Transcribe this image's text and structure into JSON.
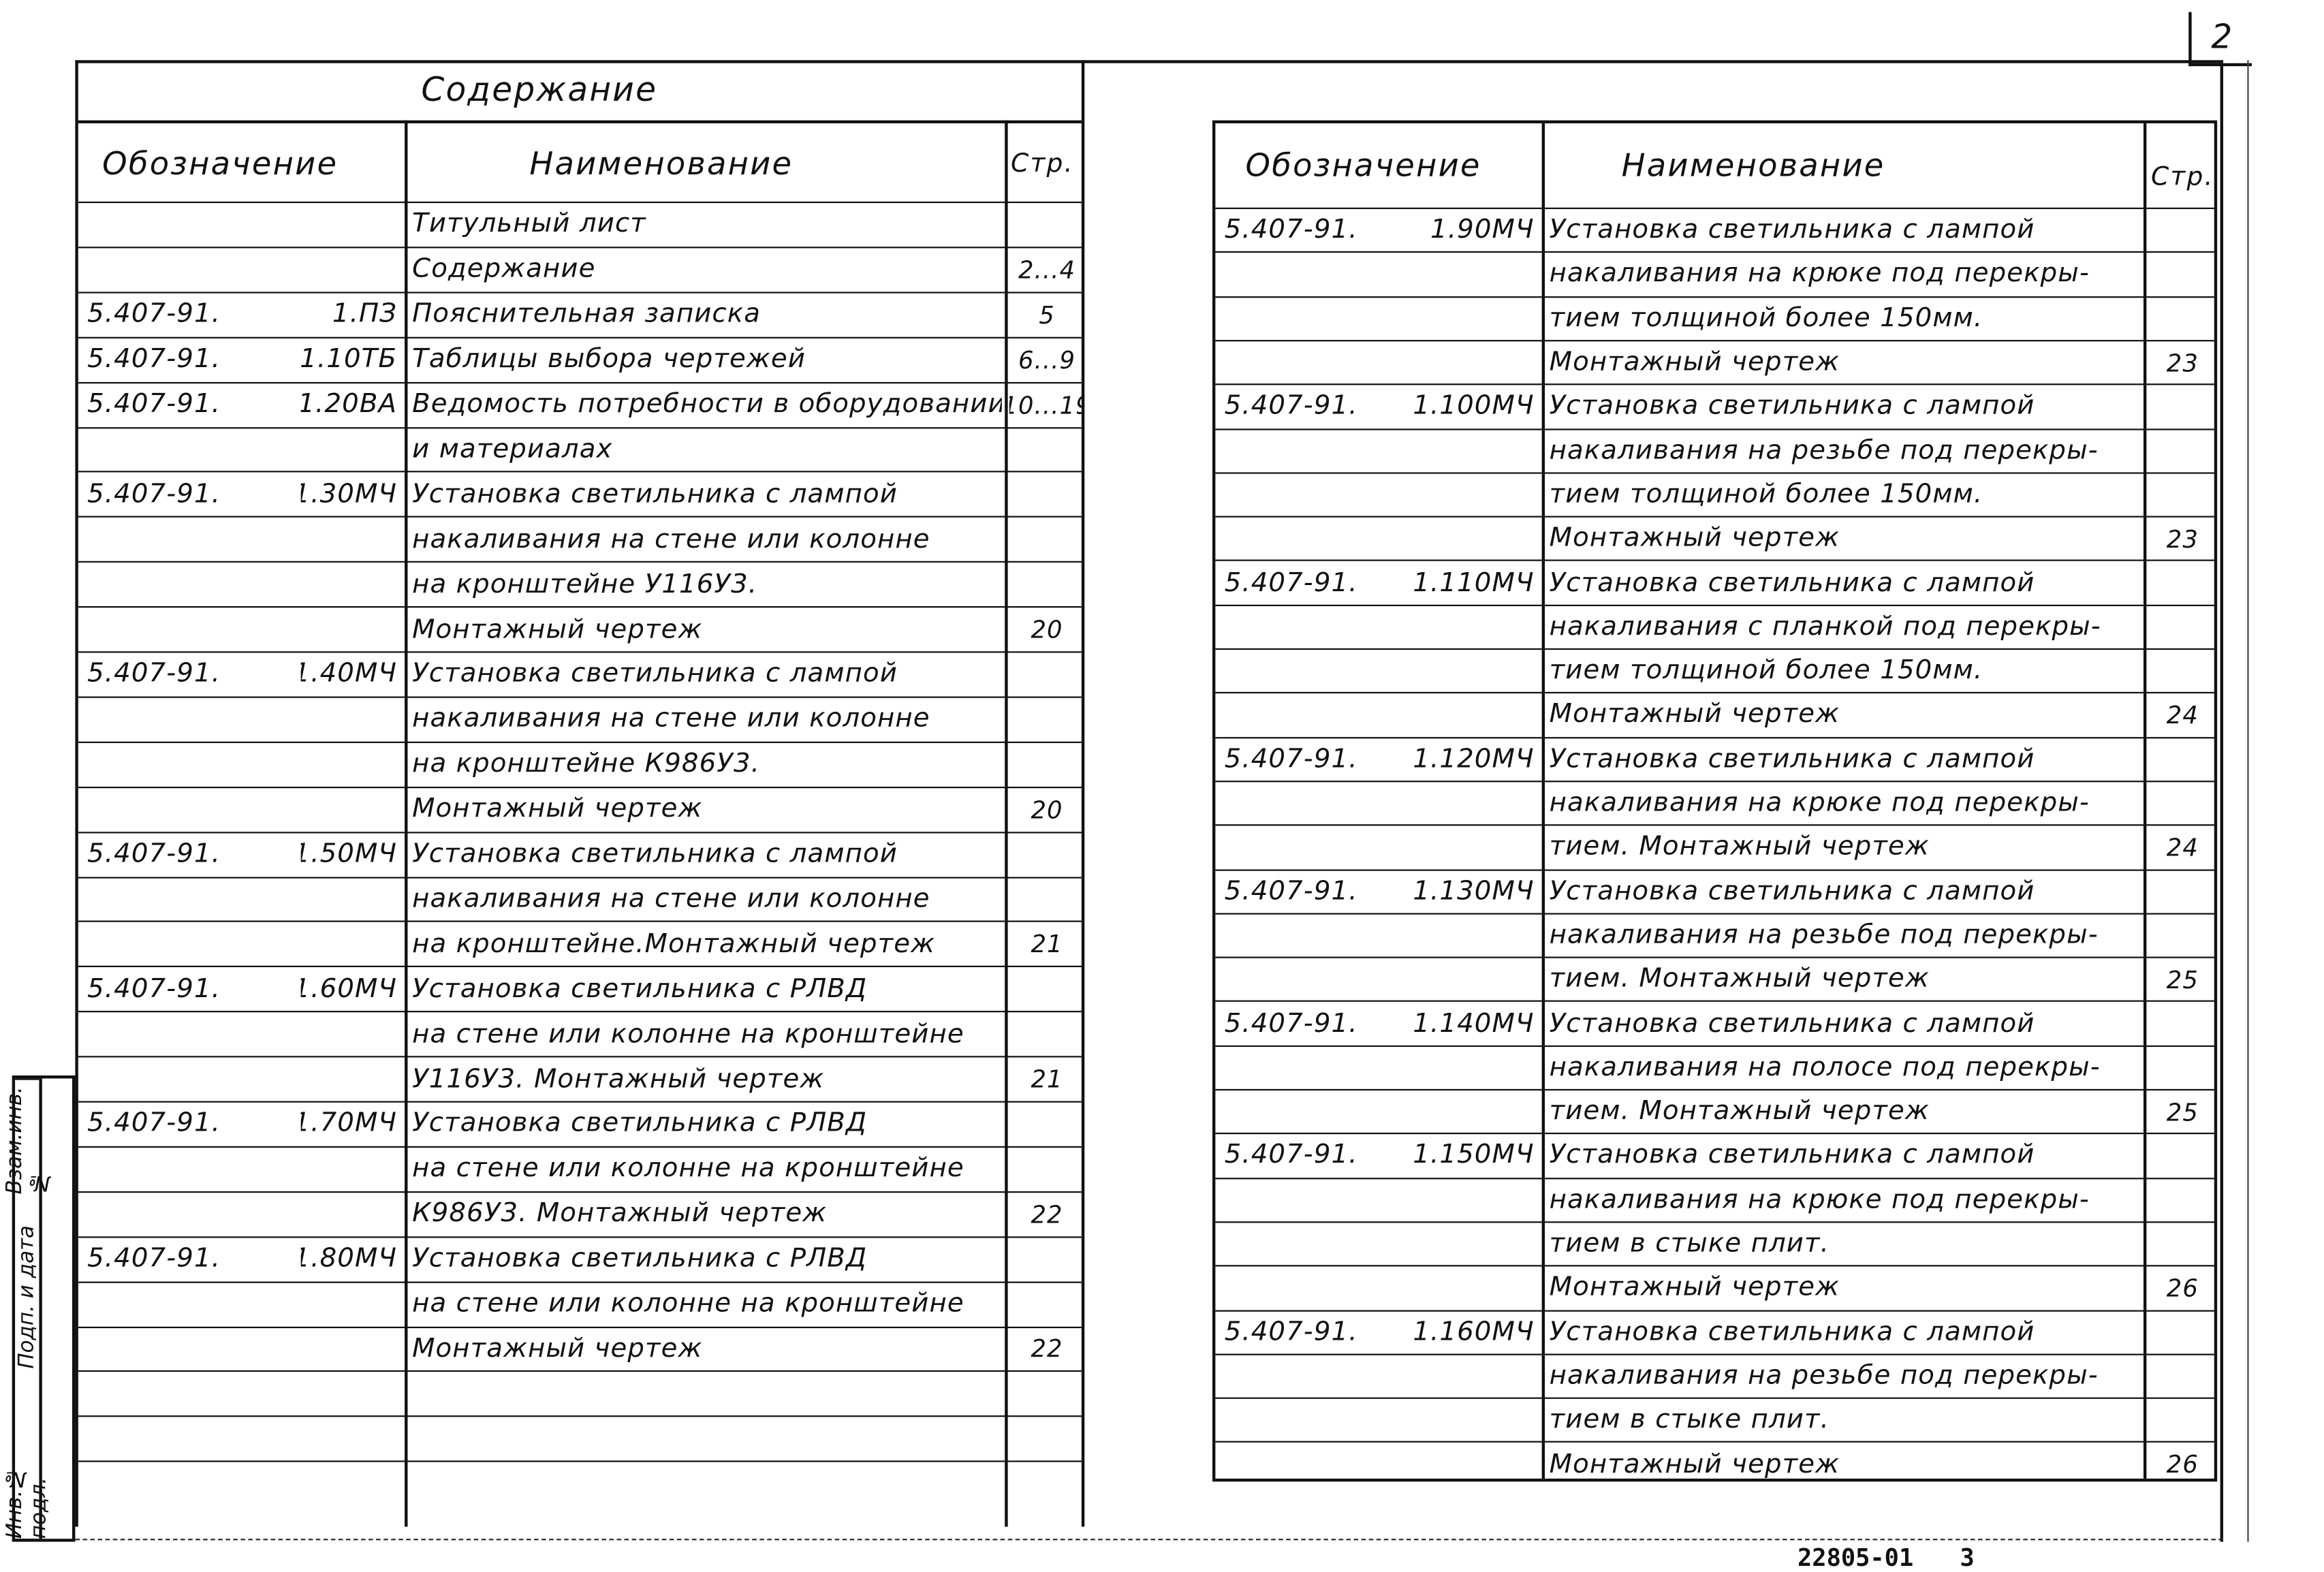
{
  "page_number": "2",
  "left_table": {
    "title": "Содержание",
    "headers": {
      "code": "Обозначение",
      "name": "Наименование",
      "page": "Стр."
    },
    "rows": [
      {
        "code": "",
        "num": "",
        "name": "Титульный лист",
        "page": ""
      },
      {
        "code": "",
        "num": "",
        "name": "Содержание",
        "page": "2...4"
      },
      {
        "code": "5.407-91.",
        "num": "1.ПЗ",
        "name": "Пояснительная записка",
        "page": "5"
      },
      {
        "code": "5.407-91.",
        "num": "1.10ТБ",
        "name": "Таблицы выбора чертежей",
        "page": "6...9"
      },
      {
        "code": "5.407-91.",
        "num": "1.20ВА",
        "name": "Ведомость потребности в оборудовании",
        "page": "10...19"
      },
      {
        "code": "",
        "num": "",
        "name": "и материалах",
        "page": ""
      },
      {
        "code": "5.407-91.",
        "num": "1.30МЧ",
        "name": "Установка светильника с лампой",
        "page": ""
      },
      {
        "code": "",
        "num": "",
        "name": "накаливания на стене или колонне",
        "page": ""
      },
      {
        "code": "",
        "num": "",
        "name": "на кронштейне У116У3.",
        "page": ""
      },
      {
        "code": "",
        "num": "",
        "name": "Монтажный чертеж",
        "page": "20"
      },
      {
        "code": "5.407-91.",
        "num": "1.40МЧ",
        "name": "Установка светильника с лампой",
        "page": ""
      },
      {
        "code": "",
        "num": "",
        "name": "накаливания на стене или колонне",
        "page": ""
      },
      {
        "code": "",
        "num": "",
        "name": "на кронштейне К986У3.",
        "page": ""
      },
      {
        "code": "",
        "num": "",
        "name": "Монтажный чертеж",
        "page": "20"
      },
      {
        "code": "5.407-91.",
        "num": "1.50МЧ",
        "name": "Установка светильника с лампой",
        "page": ""
      },
      {
        "code": "",
        "num": "",
        "name": "накаливания на стене или колонне",
        "page": ""
      },
      {
        "code": "",
        "num": "",
        "name": "на кронштейне.Монтажный чертеж",
        "page": "21"
      },
      {
        "code": "5.407-91.",
        "num": "1.60МЧ",
        "name": "Установка светильника с РЛВД",
        "page": ""
      },
      {
        "code": "",
        "num": "",
        "name": "на стене или колонне на кронштейне",
        "page": ""
      },
      {
        "code": "",
        "num": "",
        "name": "У116У3. Монтажный чертеж",
        "page": "21"
      },
      {
        "code": "5.407-91.",
        "num": "1.70МЧ",
        "name": "Установка светильника с РЛВД",
        "page": ""
      },
      {
        "code": "",
        "num": "",
        "name": "на стене или колонне на кронштейне",
        "page": ""
      },
      {
        "code": "",
        "num": "",
        "name": "К986У3. Монтажный чертеж",
        "page": "22"
      },
      {
        "code": "5.407-91.",
        "num": "1.80МЧ",
        "name": "Установка светильника с РЛВД",
        "page": ""
      },
      {
        "code": "",
        "num": "",
        "name": "на стене или колонне на кронштейне",
        "page": ""
      },
      {
        "code": "",
        "num": "",
        "name": "Монтажный чертеж",
        "page": "22"
      },
      {
        "code": "",
        "num": "",
        "name": "",
        "page": ""
      },
      {
        "code": "",
        "num": "",
        "name": "",
        "page": ""
      },
      {
        "code": "",
        "num": "",
        "name": "",
        "page": ""
      }
    ]
  },
  "right_table": {
    "headers": {
      "code": "Обозначение",
      "name": "Наименование",
      "page": "Стр."
    },
    "rows": [
      {
        "code": "5.407-91.",
        "num": "1.90МЧ",
        "name": "Установка светильника с лампой",
        "page": ""
      },
      {
        "code": "",
        "num": "",
        "name": "накаливания на крюке под перекры-",
        "page": ""
      },
      {
        "code": "",
        "num": "",
        "name": "тием толщиной более 150мм.",
        "page": ""
      },
      {
        "code": "",
        "num": "",
        "name": "Монтажный чертеж",
        "page": "23"
      },
      {
        "code": "5.407-91.",
        "num": "1.100МЧ",
        "name": "Установка светильника с лампой",
        "page": ""
      },
      {
        "code": "",
        "num": "",
        "name": "накаливания на резьбе под перекры-",
        "page": ""
      },
      {
        "code": "",
        "num": "",
        "name": "тием толщиной более 150мм.",
        "page": ""
      },
      {
        "code": "",
        "num": "",
        "name": "Монтажный чертеж",
        "page": "23"
      },
      {
        "code": "5.407-91.",
        "num": "1.110МЧ",
        "name": "Установка светильника с лампой",
        "page": ""
      },
      {
        "code": "",
        "num": "",
        "name": "накаливания с планкой под перекры-",
        "page": ""
      },
      {
        "code": "",
        "num": "",
        "name": "тием толщиной более 150мм.",
        "page": ""
      },
      {
        "code": "",
        "num": "",
        "name": "Монтажный чертеж",
        "page": "24"
      },
      {
        "code": "5.407-91.",
        "num": "1.120МЧ",
        "name": "Установка светильника с лампой",
        "page": ""
      },
      {
        "code": "",
        "num": "",
        "name": "накаливания на крюке под перекры-",
        "page": ""
      },
      {
        "code": "",
        "num": "",
        "name": "тием. Монтажный чертеж",
        "page": "24"
      },
      {
        "code": "5.407-91.",
        "num": "1.130МЧ",
        "name": "Установка светильника с лампой",
        "page": ""
      },
      {
        "code": "",
        "num": "",
        "name": "накаливания на резьбе под перекры-",
        "page": ""
      },
      {
        "code": "",
        "num": "",
        "name": "тием. Монтажный чертеж",
        "page": "25"
      },
      {
        "code": "5.407-91.",
        "num": "1.140МЧ",
        "name": "Установка светильника с лампой",
        "page": ""
      },
      {
        "code": "",
        "num": "",
        "name": "накаливания на полосе под перекры-",
        "page": ""
      },
      {
        "code": "",
        "num": "",
        "name": "тием. Монтажный чертеж",
        "page": "25"
      },
      {
        "code": "5.407-91.",
        "num": "1.150МЧ",
        "name": "Установка светильника с лампой",
        "page": ""
      },
      {
        "code": "",
        "num": "",
        "name": "накаливания на крюке под перекры-",
        "page": ""
      },
      {
        "code": "",
        "num": "",
        "name": "тием в стыке плит.",
        "page": ""
      },
      {
        "code": "",
        "num": "",
        "name": "Монтажный чертеж",
        "page": "26"
      },
      {
        "code": "5.407-91.",
        "num": "1.160МЧ",
        "name": "Установка светильника с лампой",
        "page": ""
      },
      {
        "code": "",
        "num": "",
        "name": "накаливания на резьбе под перекры-",
        "page": ""
      },
      {
        "code": "",
        "num": "",
        "name": "тием в стыке плит.",
        "page": ""
      },
      {
        "code": "",
        "num": "",
        "name": "Монтажный чертеж",
        "page": "26"
      }
    ]
  },
  "side_stamp": {
    "replace_inv": "Взам.инв.№",
    "sign_date": "Подп. и дата",
    "inv_orig": "Инв.№ подл."
  },
  "footer": {
    "doc_number": "22805-01",
    "sheet": "3"
  }
}
